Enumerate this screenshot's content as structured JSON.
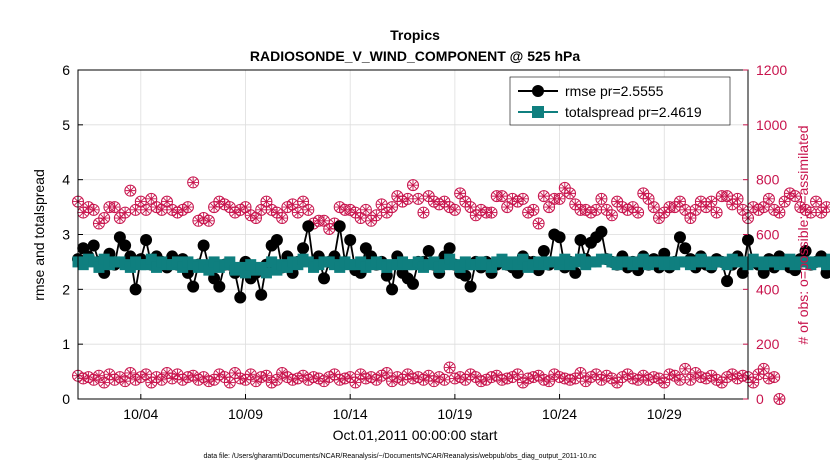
{
  "chart_data": {
    "type": "line",
    "title": "Tropics",
    "subtitle": "RADIOSONDE_V_WIND_COMPONENT @ 525 hPa",
    "xlabel": "Oct.01,2011 00:00:00 start",
    "ylabel": "rmse and totalspread",
    "y2label": "# of obs: o=possible; ×=assimilated",
    "footnote": "data file: /Users/gharamti/Documents/NCAR/Reanalysis/~/Documents/NCAR/Reanalysis/webpub/obs_diag_output_2011-10.nc",
    "xlim": [
      1,
      33
    ],
    "ylim": [
      0,
      6
    ],
    "y2lim": [
      0,
      1200
    ],
    "xticks": [
      4,
      9,
      14,
      19,
      24,
      29
    ],
    "xtick_labels": [
      "10/04",
      "10/09",
      "10/14",
      "10/19",
      "10/24",
      "10/29"
    ],
    "yticks": [
      0,
      1,
      2,
      3,
      4,
      5,
      6
    ],
    "ytick_labels": [
      "0",
      "1",
      "2",
      "3",
      "4",
      "5",
      "6"
    ],
    "y2ticks": [
      0,
      200,
      400,
      600,
      800,
      1000,
      1200
    ],
    "y2tick_labels": [
      "0",
      "200",
      "400",
      "600",
      "800",
      "1000",
      "1200"
    ],
    "legend_position": "top-right",
    "colors": {
      "rmse": "#000000",
      "spread": "#0f7f7f",
      "obs": "#c8144d",
      "grid": "#dddddd"
    },
    "x_start": 1,
    "x_step": 0.25,
    "series": [
      {
        "name": "rmse pr=2.5555",
        "values": [
          2.55,
          2.75,
          2.6,
          2.8,
          2.5,
          2.3,
          2.65,
          2.45,
          2.95,
          2.8,
          2.6,
          2.0,
          2.55,
          2.9,
          2.45,
          2.6,
          2.5,
          2.4,
          2.6,
          2.45,
          2.55,
          2.3,
          2.05,
          2.45,
          2.8,
          2.4,
          2.2,
          2.05,
          2.45,
          2.45,
          2.3,
          1.85,
          2.5,
          2.2,
          2.3,
          1.9,
          2.45,
          2.8,
          2.9,
          2.4,
          2.6,
          2.3,
          2.5,
          2.75,
          3.15,
          2.45,
          2.6,
          2.2,
          2.5,
          2.6,
          3.15,
          2.5,
          2.9,
          2.35,
          2.3,
          2.75,
          2.6,
          2.45,
          2.5,
          2.25,
          2.0,
          2.6,
          2.3,
          2.2,
          2.1,
          2.5,
          2.5,
          2.7,
          2.45,
          2.3,
          2.6,
          2.75,
          2.45,
          2.3,
          2.25,
          2.05,
          2.5,
          2.4,
          2.5,
          2.3,
          2.45,
          2.5,
          2.45,
          2.4,
          2.3,
          2.6,
          2.5,
          2.5,
          2.35,
          2.7,
          2.45,
          3.0,
          2.95,
          2.4,
          2.5,
          2.3,
          2.9,
          2.55,
          2.85,
          2.95,
          3.05,
          2.55,
          2.5,
          2.45,
          2.6,
          2.4,
          2.5,
          2.35,
          2.6,
          2.45,
          2.55,
          2.4,
          2.65,
          2.4,
          2.5,
          2.95,
          2.75,
          2.55,
          2.4,
          2.6,
          2.45,
          2.4,
          2.55,
          2.5,
          2.15,
          2.45,
          2.6,
          2.3,
          2.9,
          2.5,
          2.45,
          2.3,
          2.55,
          2.4,
          2.6,
          2.5,
          2.4,
          2.35,
          2.55,
          2.7,
          2.45,
          2.5,
          2.6,
          2.3,
          2.45,
          2.55,
          2.6,
          2.5,
          2.6,
          2.75,
          3.05,
          2.5,
          2.4,
          2.5,
          2.45,
          2.55,
          2.5,
          2.75,
          2.45,
          2.3,
          2.65,
          2.6,
          2.5,
          2.7,
          2.4,
          2.35,
          2.5,
          2.1
        ]
      },
      {
        "name": "totalspread pr=2.4619",
        "values": [
          2.5,
          2.45,
          2.55,
          2.5,
          2.4,
          2.55,
          2.45,
          2.5,
          2.5,
          2.45,
          2.4,
          2.5,
          2.45,
          2.45,
          2.55,
          2.4,
          2.5,
          2.45,
          2.45,
          2.5,
          2.4,
          2.5,
          2.45,
          2.4,
          2.45,
          2.35,
          2.5,
          2.4,
          2.45,
          2.5,
          2.35,
          2.4,
          2.3,
          2.45,
          2.35,
          2.4,
          2.3,
          2.5,
          2.35,
          2.45,
          2.4,
          2.5,
          2.45,
          2.55,
          2.5,
          2.4,
          2.45,
          2.5,
          2.5,
          2.45,
          2.4,
          2.5,
          2.45,
          2.45,
          2.5,
          2.4,
          2.45,
          2.5,
          2.45,
          2.4,
          2.45,
          2.45,
          2.5,
          2.45,
          2.45,
          2.5,
          2.4,
          2.45,
          2.5,
          2.4,
          2.45,
          2.55,
          2.45,
          2.4,
          2.5,
          2.45,
          2.45,
          2.5,
          2.45,
          2.4,
          2.5,
          2.55,
          2.45,
          2.5,
          2.45,
          2.55,
          2.4,
          2.45,
          2.5,
          2.45,
          2.5,
          2.5,
          2.45,
          2.55,
          2.45,
          2.5,
          2.55,
          2.45,
          2.5,
          2.5,
          2.55,
          2.55,
          2.5,
          2.45,
          2.5,
          2.5,
          2.45,
          2.5,
          2.55,
          2.45,
          2.5,
          2.5,
          2.45,
          2.5,
          2.45,
          2.5,
          2.5,
          2.45,
          2.5,
          2.55,
          2.5,
          2.45,
          2.5,
          2.5,
          2.45,
          2.55,
          2.5,
          2.5,
          2.45,
          2.55,
          2.5,
          2.45,
          2.5,
          2.5,
          2.45,
          2.5,
          2.55,
          2.45,
          2.5,
          2.5,
          2.45,
          2.5,
          2.5,
          2.45,
          2.55,
          2.5,
          2.45,
          2.5,
          2.5,
          2.45,
          2.5,
          2.55,
          2.5,
          2.45,
          2.5,
          2.45,
          2.5,
          2.5,
          2.45,
          2.55,
          2.5,
          2.5,
          2.45,
          2.5,
          2.5,
          2.45,
          2.5,
          2.5
        ]
      },
      {
        "name": "obs possible (upper)",
        "values": [
          720,
          680,
          700,
          690,
          640,
          660,
          700,
          700,
          660,
          680,
          760,
          690,
          720,
          690,
          730,
          700,
          690,
          720,
          690,
          680,
          690,
          700,
          790,
          650,
          660,
          650,
          700,
          720,
          710,
          700,
          680,
          690,
          700,
          670,
          660,
          690,
          720,
          690,
          680,
          660,
          700,
          710,
          680,
          720,
          690,
          640,
          650,
          650,
          620,
          640,
          700,
          690,
          690,
          680,
          660,
          690,
          650,
          670,
          710,
          680,
          700,
          740,
          720,
          730,
          780,
          730,
          680,
          740,
          720,
          710,
          720,
          700,
          690,
          750,
          720,
          700,
          670,
          690,
          680,
          680,
          740,
          740,
          700,
          730,
          720,
          730,
          680,
          690,
          640,
          740,
          700,
          730,
          730,
          770,
          750,
          710,
          690,
          690,
          680,
          690,
          730,
          690,
          670,
          720,
          700,
          690,
          700,
          680,
          750,
          730,
          700,
          660,
          680,
          700,
          700,
          720,
          690,
          660,
          690,
          720,
          700,
          720,
          680,
          740,
          740,
          710,
          730,
          690,
          660,
          700,
          690,
          700,
          730,
          690,
          680,
          720,
          750,
          740,
          700,
          690,
          680,
          720,
          680,
          700
        ]
      },
      {
        "name": "obs assimilated (upper)",
        "values": [
          720,
          680,
          700,
          690,
          640,
          660,
          700,
          700,
          660,
          680,
          760,
          690,
          720,
          690,
          730,
          700,
          690,
          720,
          690,
          680,
          690,
          700,
          790,
          650,
          660,
          650,
          700,
          720,
          710,
          700,
          680,
          690,
          700,
          670,
          660,
          690,
          720,
          690,
          680,
          660,
          700,
          710,
          680,
          720,
          690,
          640,
          650,
          650,
          620,
          640,
          700,
          690,
          690,
          680,
          660,
          690,
          650,
          670,
          710,
          680,
          700,
          740,
          720,
          730,
          780,
          730,
          680,
          740,
          720,
          710,
          720,
          700,
          690,
          750,
          720,
          700,
          670,
          690,
          680,
          680,
          740,
          740,
          700,
          730,
          720,
          730,
          680,
          690,
          640,
          740,
          700,
          730,
          730,
          770,
          750,
          710,
          690,
          690,
          680,
          690,
          730,
          690,
          670,
          720,
          700,
          690,
          700,
          680,
          750,
          730,
          700,
          660,
          680,
          700,
          700,
          720,
          690,
          660,
          690,
          720,
          700,
          720,
          680,
          740,
          740,
          710,
          730,
          690,
          660,
          700,
          690,
          700,
          730,
          690,
          680,
          720,
          750,
          740,
          700,
          690,
          680,
          720,
          680,
          700
        ]
      },
      {
        "name": "obs possible (lower)",
        "values": [
          85,
          75,
          80,
          70,
          85,
          60,
          90,
          70,
          80,
          65,
          95,
          70,
          80,
          90,
          60,
          80,
          70,
          95,
          75,
          90,
          70,
          80,
          85,
          70,
          80,
          65,
          70,
          90,
          80,
          60,
          95,
          75,
          70,
          90,
          65,
          80,
          85,
          60,
          70,
          95,
          80,
          70,
          75,
          85,
          70,
          80,
          75,
          65,
          80,
          90,
          70,
          75,
          80,
          60,
          90,
          75,
          80,
          70,
          85,
          95,
          65,
          80,
          70,
          90,
          75,
          80,
          70,
          85,
          65,
          80,
          70,
          115,
          75,
          80,
          70,
          90,
          80,
          65,
          70,
          80,
          85,
          70,
          75,
          80,
          90,
          60,
          75,
          80,
          85,
          70,
          65,
          90,
          80,
          75,
          70,
          75,
          95,
          65,
          80,
          90,
          70,
          85,
          75,
          60,
          80,
          90,
          75,
          70,
          85,
          70,
          80,
          75,
          60,
          90,
          85,
          70,
          110,
          70,
          95,
          80,
          75,
          85,
          70,
          60,
          80,
          90,
          75,
          85,
          80,
          60,
          90,
          110,
          75,
          80,
          0
        ]
      },
      {
        "name": "obs assimilated (lower)",
        "values": [
          85,
          75,
          80,
          70,
          85,
          60,
          90,
          70,
          80,
          65,
          95,
          70,
          80,
          90,
          60,
          80,
          70,
          95,
          75,
          90,
          70,
          80,
          85,
          70,
          80,
          65,
          70,
          90,
          80,
          60,
          95,
          75,
          70,
          90,
          65,
          80,
          85,
          60,
          70,
          95,
          80,
          70,
          75,
          85,
          70,
          80,
          75,
          65,
          80,
          90,
          70,
          75,
          80,
          60,
          90,
          75,
          80,
          70,
          85,
          95,
          65,
          80,
          70,
          90,
          75,
          80,
          70,
          85,
          65,
          80,
          70,
          115,
          75,
          80,
          70,
          90,
          80,
          65,
          70,
          80,
          85,
          70,
          75,
          80,
          90,
          60,
          75,
          80,
          85,
          70,
          65,
          90,
          80,
          75,
          70,
          75,
          95,
          65,
          80,
          90,
          70,
          85,
          75,
          60,
          80,
          90,
          75,
          70,
          85,
          70,
          80,
          75,
          60,
          90,
          85,
          70,
          110,
          70,
          95,
          80,
          75,
          85,
          70,
          60,
          80,
          90,
          75,
          85,
          80,
          60,
          90,
          110,
          75,
          80,
          0
        ]
      }
    ]
  }
}
